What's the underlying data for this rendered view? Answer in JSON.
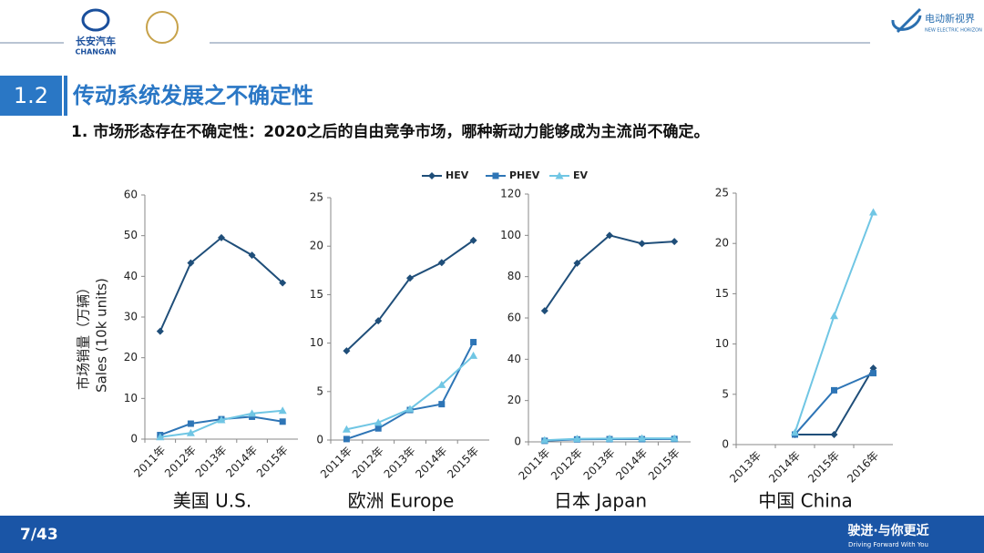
{
  "slide": {
    "section": "1.2",
    "heading": "传动系统发展之不确定性",
    "subheading": "1. 市场形态存在不确定性：2020之后的自由竞争市场，哪种新动力能够成为主流尚不确定。",
    "page": "7/43",
    "brand_cn": "长安汽车",
    "brand_en": "CHANGAN",
    "media_cn": "电动新视界",
    "media_en": "NEW ELECTRIC HORIZON",
    "slogan_cn": "驶进·与你更近",
    "slogan_en": "Driving Forward With You"
  },
  "chart_data": [
    {
      "type": "line",
      "title": "美国 U.S.",
      "ylabel": "市场销量（万辆）",
      "ylabel2": "Sales (10k units)",
      "categories": [
        "2011年",
        "2012年",
        "2013年",
        "2014年",
        "2015年"
      ],
      "series": [
        {
          "name": "HEV",
          "color": "#1f4e79",
          "marker": "diamond",
          "values": [
            26.5,
            43.3,
            49.5,
            45.2,
            38.4
          ]
        },
        {
          "name": "PHEV",
          "color": "#2e75b6",
          "marker": "square",
          "values": [
            1.0,
            3.8,
            4.9,
            5.5,
            4.3
          ]
        },
        {
          "name": "EV",
          "color": "#70c6e4",
          "marker": "triangle",
          "values": [
            0.5,
            1.5,
            4.7,
            6.3,
            7.0
          ]
        }
      ],
      "ylim": [
        0,
        60
      ],
      "yticks": [
        0,
        10,
        20,
        30,
        40,
        50,
        60
      ]
    },
    {
      "type": "line",
      "title": "欧洲 Europe",
      "categories": [
        "2011年",
        "2012年",
        "2013年",
        "2014年",
        "2015年"
      ],
      "series": [
        {
          "name": "HEV",
          "color": "#1f4e79",
          "marker": "diamond",
          "values": [
            9.2,
            12.3,
            16.7,
            18.3,
            20.6
          ]
        },
        {
          "name": "PHEV",
          "color": "#2e75b6",
          "marker": "square",
          "values": [
            0.1,
            1.2,
            3.1,
            3.7,
            10.1
          ]
        },
        {
          "name": "EV",
          "color": "#70c6e4",
          "marker": "triangle",
          "values": [
            1.1,
            1.8,
            3.2,
            5.7,
            8.7
          ]
        }
      ],
      "ylim": [
        0,
        25
      ],
      "yticks": [
        0,
        5,
        10,
        15,
        20,
        25
      ]
    },
    {
      "type": "line",
      "title": "日本 Japan",
      "categories": [
        "2011年",
        "2012年",
        "2013年",
        "2014年",
        "2015年"
      ],
      "series": [
        {
          "name": "HEV",
          "color": "#1f4e79",
          "marker": "diamond",
          "values": [
            63.5,
            86.5,
            100,
            96,
            97
          ]
        },
        {
          "name": "PHEV",
          "color": "#2e75b6",
          "marker": "square",
          "values": [
            0.5,
            1.2,
            1.3,
            1.3,
            1.4
          ]
        },
        {
          "name": "EV",
          "color": "#70c6e4",
          "marker": "triangle",
          "values": [
            0.8,
            1.5,
            1.6,
            1.7,
            1.7
          ]
        }
      ],
      "ylim": [
        0,
        120
      ],
      "yticks": [
        0,
        20,
        40,
        60,
        80,
        100,
        120
      ]
    },
    {
      "type": "line",
      "title": "中国 China",
      "categories": [
        "2013年",
        "2014年",
        "2015年",
        "2016年"
      ],
      "series": [
        {
          "name": "HEV",
          "color": "#1f4e79",
          "marker": "diamond",
          "values": [
            null,
            1.0,
            1.0,
            7.6
          ]
        },
        {
          "name": "PHEV",
          "color": "#2e75b6",
          "marker": "square",
          "values": [
            null,
            1.0,
            5.4,
            7.1
          ]
        },
        {
          "name": "EV",
          "color": "#70c6e4",
          "marker": "triangle",
          "values": [
            null,
            1.2,
            12.8,
            23.1
          ]
        }
      ],
      "ylim": [
        0,
        25
      ],
      "yticks": [
        0,
        5,
        10,
        15,
        20,
        25
      ]
    }
  ]
}
